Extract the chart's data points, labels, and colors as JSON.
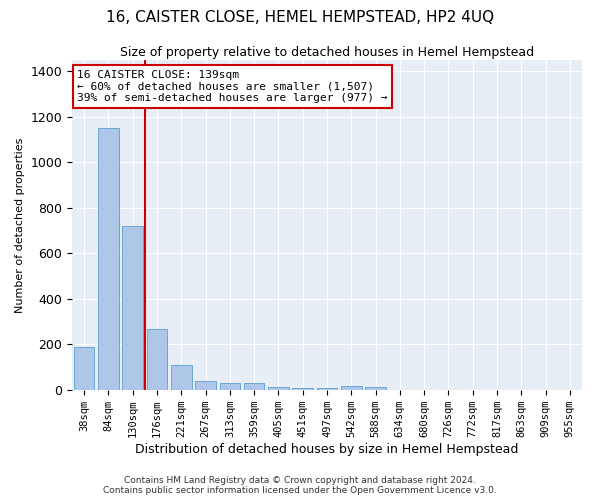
{
  "title": "16, CAISTER CLOSE, HEMEL HEMPSTEAD, HP2 4UQ",
  "subtitle": "Size of property relative to detached houses in Hemel Hempstead",
  "xlabel": "Distribution of detached houses by size in Hemel Hempstead",
  "ylabel": "Number of detached properties",
  "footer1": "Contains HM Land Registry data © Crown copyright and database right 2024.",
  "footer2": "Contains public sector information licensed under the Open Government Licence v3.0.",
  "categories": [
    "38sqm",
    "84sqm",
    "130sqm",
    "176sqm",
    "221sqm",
    "267sqm",
    "313sqm",
    "359sqm",
    "405sqm",
    "451sqm",
    "497sqm",
    "542sqm",
    "588sqm",
    "634sqm",
    "680sqm",
    "726sqm",
    "772sqm",
    "817sqm",
    "863sqm",
    "909sqm",
    "955sqm"
  ],
  "values": [
    190,
    1150,
    720,
    270,
    110,
    38,
    30,
    30,
    15,
    10,
    8,
    17,
    12,
    0,
    0,
    0,
    0,
    0,
    0,
    0,
    0
  ],
  "bar_color": "#aec6e8",
  "bar_edge_color": "#5a9fd4",
  "vline_x": 2.5,
  "vline_color": "#cc0000",
  "annotation_title": "16 CAISTER CLOSE: 139sqm",
  "annotation_line1": "← 60% of detached houses are smaller (1,507)",
  "annotation_line2": "39% of semi-detached houses are larger (977) →",
  "annotation_box_color": "#cc0000",
  "ylim": [
    0,
    1450
  ],
  "yticks": [
    0,
    200,
    400,
    600,
    800,
    1000,
    1200,
    1400
  ],
  "background_color": "#e8eef5",
  "title_fontsize": 11,
  "subtitle_fontsize": 9,
  "ylabel_fontsize": 8,
  "xlabel_fontsize": 9,
  "tick_fontsize": 7.5,
  "footer_fontsize": 6.5,
  "annotation_fontsize": 8
}
